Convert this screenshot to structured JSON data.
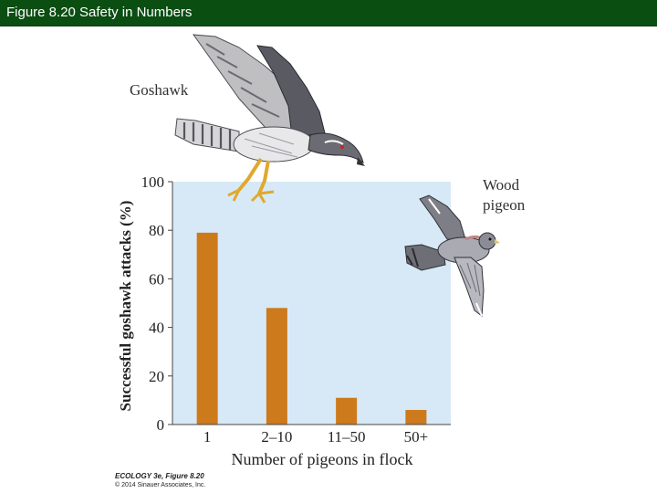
{
  "slide": {
    "title": "Figure 8.20  Safety in Numbers"
  },
  "labels": {
    "predator": "Goshawk",
    "prey_line1": "Wood",
    "prey_line2": "pigeon"
  },
  "credit": {
    "line1": "ECOLOGY 3e, Figure 8.20",
    "line2": "© 2014 Sinauer Associates, Inc."
  },
  "colors": {
    "title_bar": "#0b4e12",
    "plot_background": "#d7e9f6",
    "bar_fill": "#cd7a1c"
  },
  "icons": {
    "predator_illustration": "goshawk-illustration",
    "prey_illustration": "wood-pigeon-illustration"
  },
  "chart_data": {
    "type": "bar",
    "categories": [
      "1",
      "2–10",
      "11–50",
      "50+"
    ],
    "values": [
      79,
      48,
      11,
      6
    ],
    "title": "",
    "xlabel": "Number of pigeons in flock",
    "ylabel": "Successful goshawk attacks (%)",
    "ylim": [
      0,
      100
    ],
    "yticks": [
      "0",
      "20",
      "40",
      "60",
      "80",
      "100"
    ],
    "grid": false,
    "legend": "none"
  }
}
